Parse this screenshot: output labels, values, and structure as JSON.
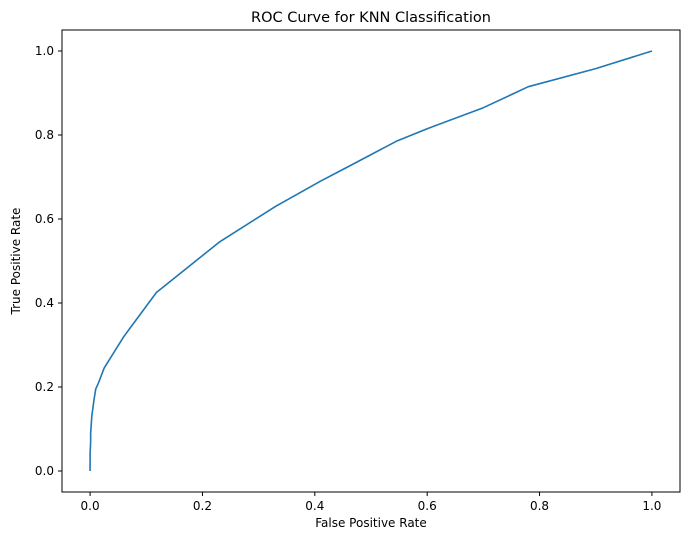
{
  "chart_data": {
    "type": "line",
    "title": "ROC Curve for KNN Classification",
    "xlabel": "False Positive Rate",
    "ylabel": "True Positive Rate",
    "xlim": [
      -0.05,
      1.05
    ],
    "ylim": [
      -0.05,
      1.05
    ],
    "x_ticks": [
      0.0,
      0.2,
      0.4,
      0.6,
      0.8,
      1.0
    ],
    "x_tick_labels": [
      "0.0",
      "0.2",
      "0.4",
      "0.6",
      "0.8",
      "1.0"
    ],
    "y_ticks": [
      0.0,
      0.2,
      0.4,
      0.6,
      0.8,
      1.0
    ],
    "y_tick_labels": [
      "0.0",
      "0.2",
      "0.4",
      "0.6",
      "0.8",
      "1.0"
    ],
    "grid": false,
    "legend": "none",
    "series": [
      {
        "color": "#1f77b4",
        "x": [
          0.0,
          0.0,
          0.001,
          0.001,
          0.002,
          0.003,
          0.005,
          0.007,
          0.01,
          0.015,
          0.025,
          0.06,
          0.118,
          0.23,
          0.33,
          0.41,
          0.46,
          0.545,
          0.6,
          0.7,
          0.78,
          0.9,
          1.0
        ],
        "y": [
          0.0,
          0.04,
          0.07,
          0.09,
          0.11,
          0.13,
          0.15,
          0.17,
          0.195,
          0.21,
          0.245,
          0.32,
          0.425,
          0.545,
          0.63,
          0.69,
          0.725,
          0.785,
          0.815,
          0.865,
          0.915,
          0.958,
          1.0
        ]
      }
    ]
  }
}
